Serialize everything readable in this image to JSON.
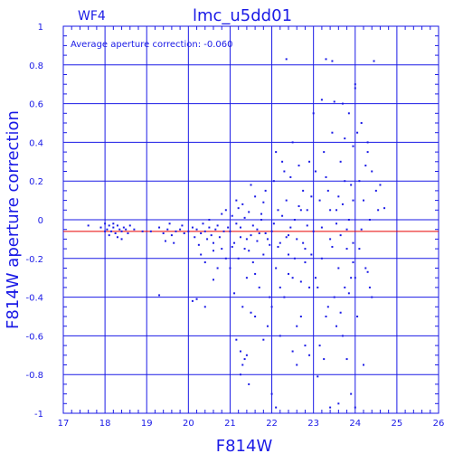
{
  "chart_data": {
    "type": "scatter",
    "title": "lmc_u5dd01",
    "panel_label": "WF4",
    "xlabel": "F814W",
    "ylabel": "F814W aperture correction",
    "annotation": "Average aperture correction: -0.060",
    "xlim": [
      17,
      26
    ],
    "ylim": [
      -1,
      1
    ],
    "x_ticks": [
      17,
      18,
      19,
      20,
      21,
      22,
      23,
      24,
      25,
      26
    ],
    "y_ticks": [
      -1,
      -0.8,
      -0.6,
      -0.4,
      -0.2,
      0,
      0.2,
      0.4,
      0.6,
      0.8,
      1
    ],
    "y_tick_labels": [
      "-1",
      "-0.8",
      "-0.6",
      "-0.4",
      "-0.2",
      "0",
      "0.2",
      "0.4",
      "0.6",
      "0.8",
      "1"
    ],
    "grid": true,
    "reference_line_y": -0.06,
    "colors": {
      "axes": "#1a1ae6",
      "points": "#1a1ae6",
      "reference_line": "#e60000"
    },
    "points": [
      [
        17.6,
        -0.03
      ],
      [
        17.9,
        -0.04
      ],
      [
        18.0,
        -0.02
      ],
      [
        18.05,
        -0.05
      ],
      [
        18.1,
        -0.03
      ],
      [
        18.15,
        -0.06
      ],
      [
        18.2,
        -0.04
      ],
      [
        18.25,
        -0.07
      ],
      [
        18.3,
        -0.03
      ],
      [
        18.35,
        -0.05
      ],
      [
        18.4,
        -0.06
      ],
      [
        18.45,
        -0.04
      ],
      [
        18.5,
        -0.05
      ],
      [
        18.55,
        -0.07
      ],
      [
        18.6,
        -0.03
      ],
      [
        18.1,
        -0.08
      ],
      [
        18.0,
        -0.06
      ],
      [
        18.3,
        -0.09
      ],
      [
        18.2,
        -0.02
      ],
      [
        18.4,
        -0.1
      ],
      [
        18.7,
        -0.05
      ],
      [
        18.9,
        -0.06
      ],
      [
        19.1,
        -0.06
      ],
      [
        19.3,
        -0.04
      ],
      [
        19.4,
        -0.07
      ],
      [
        19.5,
        -0.05
      ],
      [
        19.6,
        -0.08
      ],
      [
        19.7,
        -0.06
      ],
      [
        19.8,
        -0.05
      ],
      [
        19.9,
        -0.07
      ],
      [
        19.45,
        -0.11
      ],
      [
        19.65,
        -0.12
      ],
      [
        19.85,
        -0.03
      ],
      [
        19.3,
        -0.39
      ],
      [
        19.55,
        -0.02
      ],
      [
        20.0,
        -0.06
      ],
      [
        20.1,
        -0.04
      ],
      [
        20.15,
        -0.09
      ],
      [
        20.2,
        -0.05
      ],
      [
        20.25,
        -0.13
      ],
      [
        20.3,
        -0.07
      ],
      [
        20.35,
        -0.02
      ],
      [
        20.4,
        -0.06
      ],
      [
        20.45,
        -0.1
      ],
      [
        20.5,
        -0.04
      ],
      [
        20.55,
        -0.08
      ],
      [
        20.6,
        -0.12
      ],
      [
        20.65,
        -0.05
      ],
      [
        20.7,
        -0.03
      ],
      [
        20.75,
        -0.09
      ],
      [
        20.8,
        -0.15
      ],
      [
        20.85,
        -0.06
      ],
      [
        20.9,
        -0.2
      ],
      [
        20.95,
        -0.04
      ],
      [
        20.4,
        -0.22
      ],
      [
        20.2,
        -0.41
      ],
      [
        20.1,
        -0.42
      ],
      [
        20.4,
        -0.45
      ],
      [
        20.6,
        -0.31
      ],
      [
        20.3,
        -0.18
      ],
      [
        20.7,
        -0.25
      ],
      [
        20.8,
        0.03
      ],
      [
        20.5,
        0.0
      ],
      [
        20.9,
        0.05
      ],
      [
        20.6,
        -0.16
      ],
      [
        21.0,
        -0.06
      ],
      [
        21.05,
        0.02
      ],
      [
        21.1,
        -0.12
      ],
      [
        21.15,
        0.1
      ],
      [
        21.2,
        -0.2
      ],
      [
        21.25,
        -0.04
      ],
      [
        21.3,
        0.08
      ],
      [
        21.35,
        -0.15
      ],
      [
        21.4,
        -0.3
      ],
      [
        21.45,
        0.04
      ],
      [
        21.5,
        -0.08
      ],
      [
        21.55,
        -0.22
      ],
      [
        21.6,
        0.12
      ],
      [
        21.65,
        -0.05
      ],
      [
        21.7,
        -0.35
      ],
      [
        21.75,
        0.0
      ],
      [
        21.8,
        -0.18
      ],
      [
        21.85,
        0.15
      ],
      [
        21.9,
        -0.1
      ],
      [
        21.95,
        -0.4
      ],
      [
        21.0,
        -0.25
      ],
      [
        21.1,
        -0.38
      ],
      [
        21.2,
        0.06
      ],
      [
        21.3,
        -0.45
      ],
      [
        21.4,
        -0.1
      ],
      [
        21.5,
        0.18
      ],
      [
        21.6,
        -0.28
      ],
      [
        21.7,
        -0.07
      ],
      [
        21.8,
        0.09
      ],
      [
        21.9,
        -0.55
      ],
      [
        21.15,
        -0.62
      ],
      [
        21.25,
        -0.68
      ],
      [
        21.35,
        -0.72
      ],
      [
        21.3,
        -0.75
      ],
      [
        21.4,
        -0.7
      ],
      [
        21.45,
        -0.85
      ],
      [
        21.25,
        -0.8
      ],
      [
        21.5,
        -0.48
      ],
      [
        21.6,
        -0.5
      ],
      [
        21.8,
        -0.62
      ],
      [
        21.05,
        -0.14
      ],
      [
        21.15,
        -0.02
      ],
      [
        21.25,
        -0.09
      ],
      [
        21.35,
        0.01
      ],
      [
        21.45,
        -0.16
      ],
      [
        21.55,
        -0.03
      ],
      [
        21.65,
        -0.11
      ],
      [
        21.75,
        0.03
      ],
      [
        21.85,
        -0.07
      ],
      [
        21.95,
        -0.13
      ],
      [
        22.0,
        -0.06
      ],
      [
        22.05,
        0.2
      ],
      [
        22.1,
        -0.25
      ],
      [
        22.15,
        0.05
      ],
      [
        22.2,
        -0.12
      ],
      [
        22.25,
        0.3
      ],
      [
        22.3,
        -0.4
      ],
      [
        22.35,
        0.1
      ],
      [
        22.4,
        -0.18
      ],
      [
        22.45,
        0.22
      ],
      [
        22.5,
        -0.3
      ],
      [
        22.55,
        0.0
      ],
      [
        22.6,
        -0.1
      ],
      [
        22.65,
        0.28
      ],
      [
        22.7,
        -0.5
      ],
      [
        22.75,
        0.15
      ],
      [
        22.8,
        -0.22
      ],
      [
        22.85,
        0.05
      ],
      [
        22.9,
        -0.35
      ],
      [
        22.95,
        0.12
      ],
      [
        22.0,
        -0.45
      ],
      [
        22.1,
        0.35
      ],
      [
        22.2,
        -0.6
      ],
      [
        22.3,
        0.25
      ],
      [
        22.4,
        -0.08
      ],
      [
        22.5,
        0.4
      ],
      [
        22.6,
        -0.55
      ],
      [
        22.7,
        0.05
      ],
      [
        22.8,
        -0.15
      ],
      [
        22.9,
        0.3
      ],
      [
        22.35,
        0.83
      ],
      [
        22.1,
        -0.97
      ],
      [
        22.0,
        -0.9
      ],
      [
        22.6,
        -0.75
      ],
      [
        22.8,
        -0.65
      ],
      [
        22.9,
        -0.7
      ],
      [
        22.5,
        -0.68
      ],
      [
        22.2,
        -0.35
      ],
      [
        22.4,
        -0.28
      ],
      [
        22.7,
        -0.32
      ],
      [
        22.05,
        -0.02
      ],
      [
        22.15,
        -0.14
      ],
      [
        22.25,
        0.02
      ],
      [
        22.35,
        -0.09
      ],
      [
        22.45,
        -0.04
      ],
      [
        22.55,
        -0.2
      ],
      [
        22.65,
        0.07
      ],
      [
        22.75,
        -0.12
      ],
      [
        22.85,
        -0.03
      ],
      [
        22.95,
        -0.18
      ],
      [
        23.0,
        -0.06
      ],
      [
        23.05,
        0.25
      ],
      [
        23.1,
        -0.35
      ],
      [
        23.15,
        0.1
      ],
      [
        23.2,
        -0.2
      ],
      [
        23.25,
        0.35
      ],
      [
        23.3,
        -0.5
      ],
      [
        23.35,
        0.15
      ],
      [
        23.4,
        -0.1
      ],
      [
        23.45,
        0.45
      ],
      [
        23.5,
        -0.4
      ],
      [
        23.55,
        0.05
      ],
      [
        23.6,
        -0.25
      ],
      [
        23.65,
        0.3
      ],
      [
        23.7,
        -0.6
      ],
      [
        23.75,
        0.2
      ],
      [
        23.8,
        -0.15
      ],
      [
        23.85,
        0.0
      ],
      [
        23.9,
        -0.3
      ],
      [
        23.95,
        0.1
      ],
      [
        23.0,
        0.55
      ],
      [
        23.1,
        -0.81
      ],
      [
        23.2,
        0.62
      ],
      [
        23.3,
        0.83
      ],
      [
        23.45,
        0.82
      ],
      [
        23.5,
        0.61
      ],
      [
        23.7,
        0.6
      ],
      [
        23.8,
        -0.72
      ],
      [
        23.6,
        -0.95
      ],
      [
        23.4,
        -0.97
      ],
      [
        23.15,
        -0.65
      ],
      [
        23.25,
        -0.72
      ],
      [
        23.35,
        -0.45
      ],
      [
        23.55,
        -0.55
      ],
      [
        23.65,
        -0.48
      ],
      [
        23.75,
        -0.35
      ],
      [
        23.85,
        -0.38
      ],
      [
        23.95,
        -0.22
      ],
      [
        23.05,
        -0.3
      ],
      [
        23.3,
        0.22
      ],
      [
        23.4,
        0.05
      ],
      [
        23.45,
        -0.14
      ],
      [
        23.55,
        -0.02
      ],
      [
        23.6,
        0.12
      ],
      [
        23.65,
        -0.08
      ],
      [
        23.7,
        0.08
      ],
      [
        23.8,
        -0.05
      ],
      [
        23.9,
        0.18
      ],
      [
        23.95,
        -0.12
      ],
      [
        23.2,
        -0.04
      ],
      [
        24.0,
        0.7
      ],
      [
        24.0,
        0.68
      ],
      [
        24.05,
        0.45
      ],
      [
        24.1,
        0.2
      ],
      [
        24.15,
        -0.05
      ],
      [
        24.2,
        0.1
      ],
      [
        24.25,
        -0.25
      ],
      [
        24.3,
        0.35
      ],
      [
        24.35,
        0.0
      ],
      [
        24.4,
        -0.4
      ],
      [
        24.45,
        0.82
      ],
      [
        24.3,
        0.4
      ],
      [
        24.5,
        0.15
      ],
      [
        24.6,
        0.18
      ],
      [
        24.7,
        0.06
      ],
      [
        24.55,
        0.05
      ],
      [
        24.4,
        0.25
      ],
      [
        24.3,
        -0.27
      ],
      [
        24.2,
        -0.75
      ],
      [
        24.0,
        -0.97
      ],
      [
        23.85,
        0.55
      ],
      [
        23.75,
        0.42
      ],
      [
        23.95,
        0.38
      ],
      [
        24.1,
        -0.15
      ],
      [
        24.25,
        0.28
      ],
      [
        24.0,
        -0.3
      ],
      [
        24.15,
        0.5
      ],
      [
        24.35,
        -0.35
      ],
      [
        24.05,
        -0.5
      ],
      [
        23.9,
        -0.9
      ]
    ]
  }
}
